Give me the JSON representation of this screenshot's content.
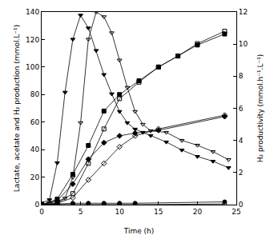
{
  "chart_data": {
    "type": "line",
    "x_label": "Time (h)",
    "y_label": "Lactate, acetate and H₂ production (mmol.L⁻¹)",
    "y2_label": "H₂ productivity (mmol.h⁻¹.L⁻¹)",
    "xlim": [
      0,
      25
    ],
    "xticks": [
      0,
      5,
      10,
      15,
      20,
      25
    ],
    "ylim": [
      0,
      140
    ],
    "yticks": [
      0,
      20,
      40,
      60,
      80,
      100,
      120,
      140
    ],
    "y2lim": [
      0,
      12
    ],
    "y2ticks": [
      0,
      2,
      4,
      6,
      8,
      10,
      12
    ],
    "grid": false,
    "series": [
      {
        "color": "#000000",
        "marker": "triangle-down",
        "axis": "y2",
        "x": [
          0,
          1,
          2,
          3,
          4,
          5,
          6,
          7,
          8,
          9,
          10,
          11,
          12,
          13,
          14,
          16,
          18,
          20,
          22,
          24
        ],
        "values": [
          0.1,
          0.3,
          2.6,
          7.0,
          10.3,
          11.8,
          11.0,
          9.6,
          8.1,
          6.9,
          5.8,
          5.1,
          4.7,
          4.5,
          4.3,
          3.9,
          3.4,
          3.0,
          2.7,
          2.3
        ]
      },
      {
        "color": "#000000",
        "marker": "triangle-down-open",
        "axis": "y2",
        "x": [
          0,
          1,
          2,
          3,
          4,
          5,
          6,
          7,
          8,
          9,
          10,
          11,
          12,
          13,
          14,
          16,
          18,
          20,
          22,
          24
        ],
        "values": [
          0,
          0.1,
          0.2,
          0.4,
          1.7,
          5.1,
          10.3,
          12.0,
          11.7,
          10.7,
          9.0,
          7.3,
          5.8,
          5.0,
          4.6,
          4.5,
          4.0,
          3.7,
          3.3,
          2.8
        ]
      },
      {
        "color": "#000000",
        "marker": "square",
        "x": [
          0,
          2,
          4,
          6,
          8,
          10,
          12.5,
          15,
          17.5,
          20,
          23.5
        ],
        "values": [
          0,
          4,
          22,
          43,
          68,
          80,
          90,
          100,
          108,
          116,
          124
        ]
      },
      {
        "color": "#000000",
        "marker": "square-open",
        "x": [
          0,
          2,
          4,
          6,
          8,
          10,
          12.5,
          15,
          17.5,
          20,
          23.5
        ],
        "values": [
          0,
          1,
          8,
          30,
          55,
          77,
          89,
          100,
          108,
          117,
          126
        ]
      },
      {
        "color": "#000000",
        "marker": "diamond",
        "x": [
          0,
          2,
          4,
          6,
          8,
          10,
          12,
          15,
          23.5
        ],
        "values": [
          0,
          3,
          15,
          33,
          45,
          50,
          52,
          54,
          64
        ]
      },
      {
        "color": "#000000",
        "marker": "diamond-open",
        "x": [
          0,
          2,
          4,
          6,
          8,
          10,
          12,
          15,
          23.5
        ],
        "values": [
          0,
          1,
          5,
          18,
          30,
          42,
          50,
          55,
          65
        ]
      },
      {
        "color": "#000000",
        "marker": "circle",
        "x": [
          0,
          2,
          4,
          6,
          8,
          10,
          12,
          23.5
        ],
        "values": [
          0,
          0.5,
          1,
          1,
          1,
          1,
          1,
          2
        ]
      },
      {
        "color": "#000000",
        "marker": "circle-open",
        "x": [
          0,
          2,
          4,
          6,
          8,
          10,
          12,
          23.5
        ],
        "values": [
          0,
          0,
          0,
          0,
          0,
          0,
          0,
          0.5
        ]
      }
    ]
  }
}
